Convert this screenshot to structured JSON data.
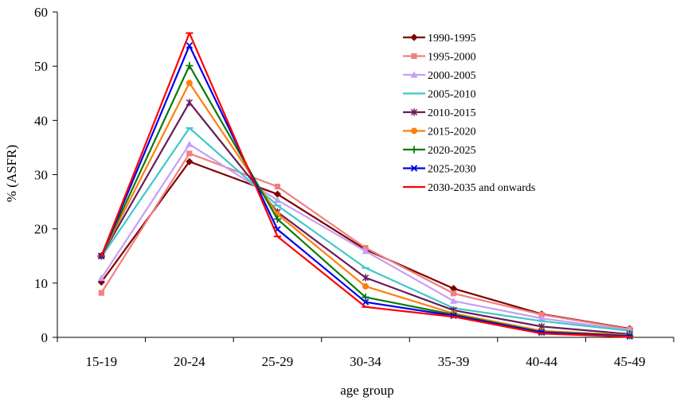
{
  "chart_data": {
    "type": "line",
    "title": "",
    "xlabel": "age group",
    "ylabel": "% (ASFR)",
    "categories": [
      "15-19",
      "20-24",
      "25-29",
      "30-34",
      "35-39",
      "40-44",
      "45-49"
    ],
    "ylim": [
      0,
      60
    ],
    "yticks": [
      0,
      10,
      20,
      30,
      40,
      50,
      60
    ],
    "grid": false,
    "legend_position": "top-right",
    "series": [
      {
        "name": "1990-1995",
        "color": "#7f0000",
        "marker": "diamond",
        "values": [
          10.2,
          32.4,
          26.4,
          16.2,
          9.0,
          4.3,
          1.6
        ]
      },
      {
        "name": "1995-2000",
        "color": "#f08080",
        "marker": "square",
        "values": [
          8.2,
          33.9,
          27.8,
          16.5,
          8.1,
          4.2,
          1.5
        ]
      },
      {
        "name": "2000-2005",
        "color": "#c79ff5",
        "marker": "triangle",
        "values": [
          10.9,
          35.6,
          25.3,
          15.9,
          6.7,
          3.5,
          1.3
        ]
      },
      {
        "name": "2005-2010",
        "color": "#40c8c8",
        "marker": "dash",
        "values": [
          14.8,
          38.6,
          24.3,
          12.8,
          5.4,
          3.0,
          1.2
        ]
      },
      {
        "name": "2010-2015",
        "color": "#6a1b5a",
        "marker": "asterisk",
        "values": [
          15.0,
          43.3,
          23.1,
          11.0,
          5.0,
          2.0,
          0.6
        ]
      },
      {
        "name": "2015-2020",
        "color": "#ff7f0e",
        "marker": "circle",
        "values": [
          15.0,
          46.9,
          22.7,
          9.4,
          4.4,
          1.2,
          0.4
        ]
      },
      {
        "name": "2020-2025",
        "color": "#0a7a0a",
        "marker": "plus",
        "values": [
          15.0,
          50.1,
          21.8,
          7.4,
          4.2,
          1.0,
          0.3
        ]
      },
      {
        "name": "2025-2030",
        "color": "#0000ee",
        "marker": "x",
        "values": [
          15.0,
          53.8,
          19.9,
          6.5,
          4.0,
          0.9,
          0.2
        ]
      },
      {
        "name": "2030-2035 and onwards",
        "color": "#ff0000",
        "marker": "dash",
        "values": [
          15.0,
          56.1,
          18.6,
          5.6,
          3.8,
          0.7,
          0.1
        ]
      }
    ]
  }
}
